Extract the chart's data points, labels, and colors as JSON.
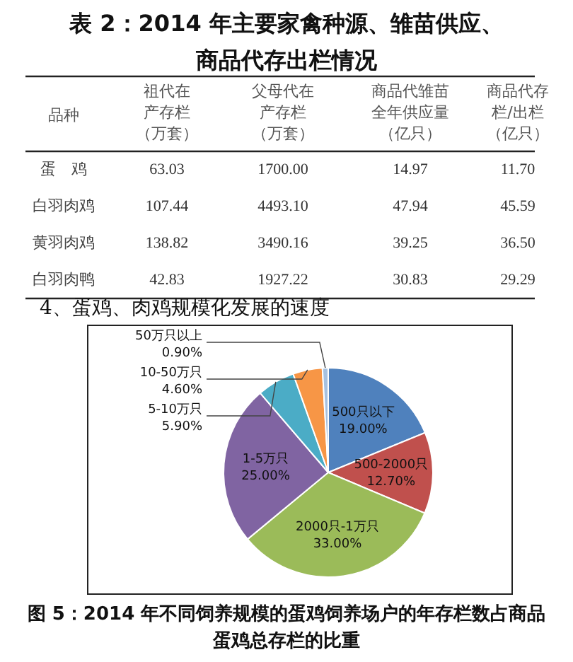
{
  "chart_data": [
    {
      "type": "other",
      "title": "表 2：2014 年主要家禽种源、雏苗供应、商品代存出栏情况",
      "ylabel": "品种",
      "categories": [
        "祖代在产存栏（万套）",
        "父母代在产存栏（万套）",
        "商品代雏苗全年供应量（亿只）",
        "商品代存栏/出栏（亿只）"
      ],
      "y_categories": [
        "蛋　鸡",
        "白羽肉鸡",
        "黄羽肉鸡",
        "白羽肉鸭"
      ],
      "cell_labels": [
        [
          "63.03",
          "1700.00",
          "14.97",
          "11.70"
        ],
        [
          "107.44",
          "4493.10",
          "47.94",
          "45.59"
        ],
        [
          "138.82",
          "3490.16",
          "39.25",
          "36.50"
        ],
        [
          "42.83",
          "1927.22",
          "30.83",
          "29.29"
        ]
      ]
    },
    {
      "type": "pie",
      "subtitle": "4、蛋鸡、肉鸡规模化发展的速度",
      "title": "图 5：2014 年不同饲养规模的蛋鸡饲养场户的年存栏数占商品蛋鸡总存栏的比重",
      "categories": [
        "500只以下",
        "500-2000只",
        "2000只-1万只",
        "1-5万只",
        "5-10万只",
        "10-50万只",
        "50万只以上"
      ],
      "values": [
        19.0,
        12.7,
        33.0,
        25.0,
        5.9,
        4.6,
        0.9
      ],
      "value_labels": [
        "19.00%",
        "12.70%",
        "33.00%",
        "25.00%",
        "5.90%",
        "4.60%",
        "0.90%"
      ],
      "colors": [
        "#4f81bd",
        "#c0504d",
        "#9bbb59",
        "#8064a2",
        "#4bacc6",
        "#f79646",
        "#a6c1e0"
      ]
    }
  ]
}
